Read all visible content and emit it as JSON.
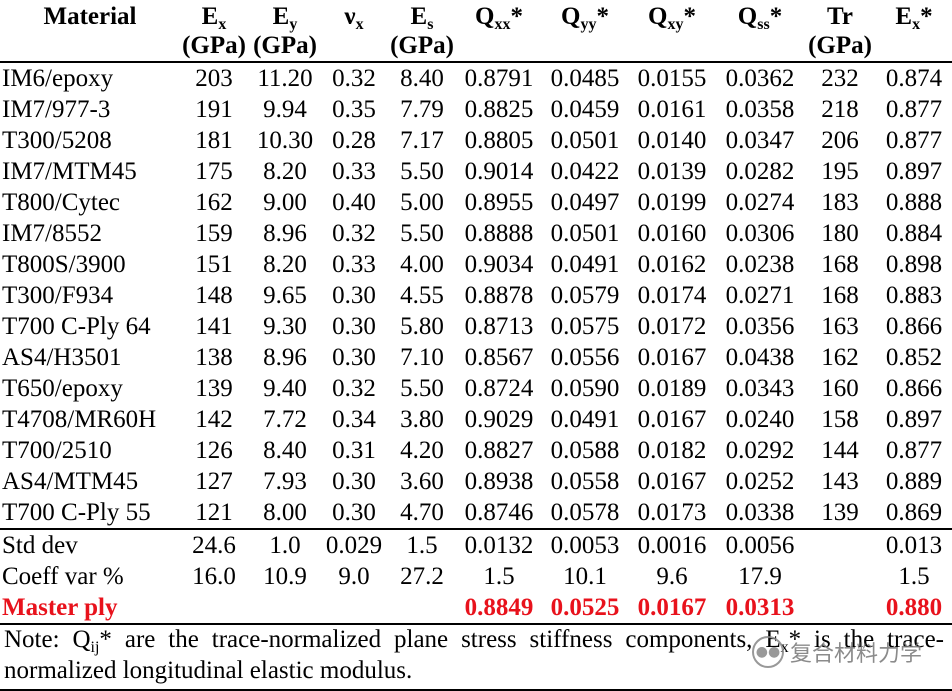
{
  "table": {
    "headers": [
      {
        "main": "Material",
        "sub": "",
        "unit": ""
      },
      {
        "main": "E",
        "sub": "x",
        "unit": "(GPa)"
      },
      {
        "main": "E",
        "sub": "y",
        "unit": "(GPa)"
      },
      {
        "main": "ν",
        "sub": "x",
        "unit": ""
      },
      {
        "main": "E",
        "sub": "s",
        "unit": "(GPa)"
      },
      {
        "main": "Q",
        "sub": "xx",
        "suffix": "*",
        "unit": ""
      },
      {
        "main": "Q",
        "sub": "yy",
        "suffix": "*",
        "unit": ""
      },
      {
        "main": "Q",
        "sub": "xy",
        "suffix": "*",
        "unit": ""
      },
      {
        "main": "Q",
        "sub": "ss",
        "suffix": "*",
        "unit": ""
      },
      {
        "main": "Tr",
        "sub": "",
        "unit": "(GPa)"
      },
      {
        "main": "E",
        "sub": "x",
        "suffix": "*",
        "unit": ""
      }
    ],
    "rows": [
      [
        "IM6/epoxy",
        "203",
        "11.20",
        "0.32",
        "8.40",
        "0.8791",
        "0.0485",
        "0.0155",
        "0.0362",
        "232",
        "0.874"
      ],
      [
        "IM7/977-3",
        "191",
        "9.94",
        "0.35",
        "7.79",
        "0.8825",
        "0.0459",
        "0.0161",
        "0.0358",
        "218",
        "0.877"
      ],
      [
        "T300/5208",
        "181",
        "10.30",
        "0.28",
        "7.17",
        "0.8805",
        "0.0501",
        "0.0140",
        "0.0347",
        "206",
        "0.877"
      ],
      [
        "IM7/MTM45",
        "175",
        "8.20",
        "0.33",
        "5.50",
        "0.9014",
        "0.0422",
        "0.0139",
        "0.0282",
        "195",
        "0.897"
      ],
      [
        "T800/Cytec",
        "162",
        "9.00",
        "0.40",
        "5.00",
        "0.8955",
        "0.0497",
        "0.0199",
        "0.0274",
        "183",
        "0.888"
      ],
      [
        "IM7/8552",
        "159",
        "8.96",
        "0.32",
        "5.50",
        "0.8888",
        "0.0501",
        "0.0160",
        "0.0306",
        "180",
        "0.884"
      ],
      [
        "T800S/3900",
        "151",
        "8.20",
        "0.33",
        "4.00",
        "0.9034",
        "0.0491",
        "0.0162",
        "0.0238",
        "168",
        "0.898"
      ],
      [
        "T300/F934",
        "148",
        "9.65",
        "0.30",
        "4.55",
        "0.8878",
        "0.0579",
        "0.0174",
        "0.0271",
        "168",
        "0.883"
      ],
      [
        "T700 C-Ply 64",
        "141",
        "9.30",
        "0.30",
        "5.80",
        "0.8713",
        "0.0575",
        "0.0172",
        "0.0356",
        "163",
        "0.866"
      ],
      [
        "AS4/H3501",
        "138",
        "8.96",
        "0.30",
        "7.10",
        "0.8567",
        "0.0556",
        "0.0167",
        "0.0438",
        "162",
        "0.852"
      ],
      [
        "T650/epoxy",
        "139",
        "9.40",
        "0.32",
        "5.50",
        "0.8724",
        "0.0590",
        "0.0189",
        "0.0343",
        "160",
        "0.866"
      ],
      [
        "T4708/MR60H",
        "142",
        "7.72",
        "0.34",
        "3.80",
        "0.9029",
        "0.0491",
        "0.0167",
        "0.0240",
        "158",
        "0.897"
      ],
      [
        "T700/2510",
        "126",
        "8.40",
        "0.31",
        "4.20",
        "0.8827",
        "0.0588",
        "0.0182",
        "0.0292",
        "144",
        "0.877"
      ],
      [
        "AS4/MTM45",
        "127",
        "7.93",
        "0.30",
        "3.60",
        "0.8938",
        "0.0558",
        "0.0167",
        "0.0252",
        "143",
        "0.889"
      ],
      [
        "T700 C-Ply 55",
        "121",
        "8.00",
        "0.30",
        "4.70",
        "0.8746",
        "0.0578",
        "0.0173",
        "0.0338",
        "139",
        "0.869"
      ]
    ],
    "stats": [
      [
        "Std dev",
        "24.6",
        "1.0",
        "0.029",
        "1.5",
        "0.0132",
        "0.0053",
        "0.0016",
        "0.0056",
        "",
        "0.013"
      ],
      [
        "Coeff var %",
        "16.0",
        "10.9",
        "9.0",
        "27.2",
        "1.5",
        "10.1",
        "9.6",
        "17.9",
        "",
        "1.5"
      ]
    ],
    "master": [
      "Master ply",
      "",
      "",
      "",
      "",
      "0.8849",
      "0.0525",
      "0.0167",
      "0.0313",
      "",
      "0.880"
    ]
  },
  "note": {
    "lead": "Note: Q",
    "lead_sub": "ij",
    "body": "* are the trace-normalized plane stress stiffness components, E",
    "body_sub": "x",
    "tail": "* is the trace-normalized longitudinal elastic modulus."
  },
  "watermark": {
    "text": "复合材料力学",
    "icon": "wechat-icon"
  },
  "colors": {
    "master": "#e8121c"
  }
}
